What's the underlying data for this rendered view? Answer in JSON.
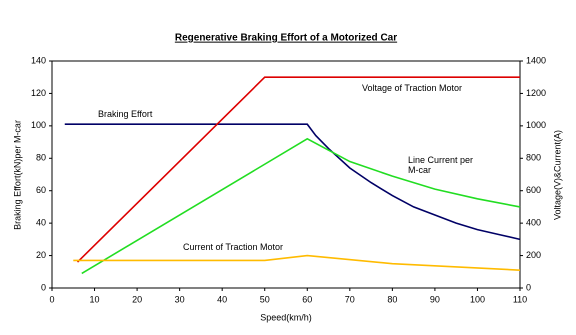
{
  "chart_data": {
    "type": "line",
    "title": "Regenerative Braking Effort of a Motorized Car",
    "x_label": "Speed(km/h)",
    "y_label": "Braking Effort(kN)per M-car",
    "y2_label": "Voltage(V)&Current(A)",
    "xlim": [
      0,
      110
    ],
    "xticks": [
      0,
      10,
      20,
      30,
      40,
      50,
      60,
      70,
      80,
      90,
      100,
      110
    ],
    "ylim": [
      0,
      140
    ],
    "yticks": [
      0,
      20,
      40,
      60,
      80,
      100,
      120,
      140
    ],
    "y2lim": [
      0,
      1400
    ],
    "y2ticks": [
      0,
      200,
      400,
      600,
      800,
      1000,
      1200,
      1400
    ],
    "grid": false,
    "series": [
      {
        "name": "Braking Effort",
        "color": "#000066",
        "x": [
          3,
          60,
          62,
          65,
          70,
          75,
          80,
          85,
          90,
          95,
          100,
          105,
          110
        ],
        "values": [
          101,
          101,
          94,
          86,
          74,
          65,
          57,
          50,
          45,
          40,
          36,
          33,
          30
        ]
      },
      {
        "name": "Voltage of Traction Motor",
        "color": "#dd0000",
        "axis": "y2",
        "x": [
          6,
          50,
          110
        ],
        "values": [
          160,
          1300,
          1300
        ]
      },
      {
        "name": "Line Current per M-car",
        "color": "#22dd22",
        "axis": "y2",
        "x": [
          7,
          60,
          70,
          80,
          90,
          100,
          110
        ],
        "values": [
          90,
          920,
          780,
          690,
          610,
          550,
          500
        ]
      },
      {
        "name": "Current of Traction Motor",
        "color": "#ffbb00",
        "axis": "y2",
        "x": [
          5,
          50,
          60,
          80,
          110
        ],
        "values": [
          170,
          170,
          200,
          150,
          110
        ]
      }
    ]
  }
}
